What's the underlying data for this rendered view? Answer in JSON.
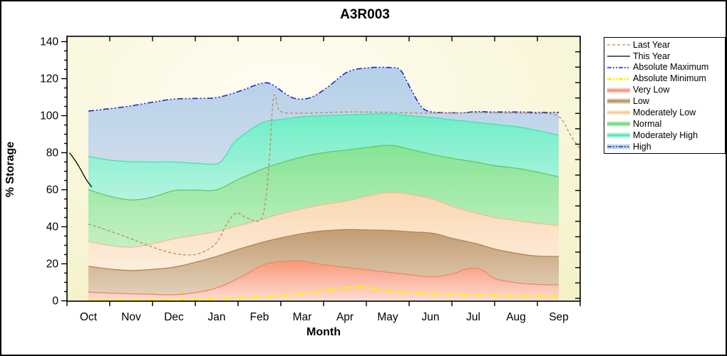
{
  "window": {
    "title": "A3R003"
  },
  "chart_data": {
    "type": "area",
    "title": "A3R003",
    "xlabel": "Month",
    "ylabel": "% Storage",
    "x_months": [
      "Oct",
      "Nov",
      "Dec",
      "Jan",
      "Feb",
      "Mar",
      "Apr",
      "May",
      "Jun",
      "Jul",
      "Aug",
      "Sep"
    ],
    "x_note": "x units are months from Oct start (0) to Sep end (12); band data runs mid-Oct (0.5) to mid-Sep (11.5)",
    "ylim": [
      0,
      140
    ],
    "y_major_step": 20,
    "y_minor_step": 5,
    "grid": "off",
    "legend_position": "right-outside",
    "plot_bg": {
      "center": "#fffdf2",
      "edge": "#f4f1c8"
    },
    "series": {
      "abs_max": [
        [
          0.5,
          102.5
        ],
        [
          1.0,
          103.8
        ],
        [
          1.5,
          105.3
        ],
        [
          2.0,
          107.3
        ],
        [
          2.5,
          109
        ],
        [
          3.0,
          109.3
        ],
        [
          3.5,
          109.8
        ],
        [
          4.0,
          113
        ],
        [
          4.55,
          117.5
        ],
        [
          4.8,
          116.8
        ],
        [
          5.1,
          112
        ],
        [
          5.35,
          109.2
        ],
        [
          5.7,
          109.8
        ],
        [
          6.1,
          115.5
        ],
        [
          6.55,
          123.5
        ],
        [
          7.0,
          125.8
        ],
        [
          7.55,
          126
        ],
        [
          7.8,
          124.5
        ],
        [
          8.05,
          114
        ],
        [
          8.3,
          104.5
        ],
        [
          8.55,
          102
        ],
        [
          9.0,
          101.6
        ],
        [
          9.3,
          101.6
        ],
        [
          9.55,
          102.2
        ],
        [
          10.0,
          102
        ],
        [
          10.55,
          102
        ],
        [
          11.0,
          101.8
        ],
        [
          11.5,
          101.8
        ]
      ],
      "mod_high_top": [
        [
          0.5,
          78
        ],
        [
          1.0,
          76
        ],
        [
          1.5,
          75.2
        ],
        [
          2.0,
          75
        ],
        [
          2.5,
          75
        ],
        [
          3.0,
          74.3
        ],
        [
          3.5,
          74
        ],
        [
          3.7,
          78
        ],
        [
          3.95,
          86.5
        ],
        [
          4.55,
          96
        ],
        [
          5.0,
          98
        ],
        [
          5.55,
          99.5
        ],
        [
          6.0,
          100
        ],
        [
          6.55,
          100.5
        ],
        [
          7.0,
          100.8
        ],
        [
          7.55,
          101
        ],
        [
          8.0,
          100
        ],
        [
          8.55,
          99
        ],
        [
          9.0,
          97.8
        ],
        [
          9.55,
          96.5
        ],
        [
          10.0,
          95.3
        ],
        [
          10.55,
          94
        ],
        [
          11.0,
          92
        ],
        [
          11.5,
          89.5
        ]
      ],
      "normal_top": [
        [
          0.5,
          60
        ],
        [
          1.0,
          56.5
        ],
        [
          1.5,
          54.5
        ],
        [
          2.0,
          56
        ],
        [
          2.5,
          59.5
        ],
        [
          3.0,
          59.8
        ],
        [
          3.5,
          60
        ],
        [
          4.0,
          65.5
        ],
        [
          4.55,
          71
        ],
        [
          5.0,
          74.5
        ],
        [
          5.55,
          78
        ],
        [
          6.0,
          80
        ],
        [
          6.55,
          81.5
        ],
        [
          7.0,
          82.8
        ],
        [
          7.55,
          84
        ],
        [
          8.0,
          82
        ],
        [
          8.55,
          79
        ],
        [
          9.0,
          77
        ],
        [
          9.55,
          75
        ],
        [
          10.0,
          73
        ],
        [
          10.55,
          71.5
        ],
        [
          11.0,
          69.5
        ],
        [
          11.5,
          67
        ]
      ],
      "mod_low_top": [
        [
          0.5,
          32
        ],
        [
          1.0,
          30
        ],
        [
          1.5,
          29
        ],
        [
          2.0,
          30.8
        ],
        [
          2.5,
          33.5
        ],
        [
          3.0,
          35.5
        ],
        [
          3.5,
          37.5
        ],
        [
          4.0,
          40.5
        ],
        [
          4.55,
          44
        ],
        [
          5.0,
          47
        ],
        [
          5.55,
          50
        ],
        [
          6.0,
          52
        ],
        [
          6.55,
          54
        ],
        [
          7.0,
          56.5
        ],
        [
          7.55,
          58.5
        ],
        [
          8.0,
          57.5
        ],
        [
          8.55,
          55
        ],
        [
          9.0,
          51
        ],
        [
          9.55,
          47.5
        ],
        [
          10.0,
          45
        ],
        [
          10.55,
          43.2
        ],
        [
          11.0,
          41.8
        ],
        [
          11.5,
          40.8
        ]
      ],
      "low_top": [
        [
          0.5,
          18.6
        ],
        [
          1.0,
          17.2
        ],
        [
          1.5,
          16.4
        ],
        [
          2.0,
          17
        ],
        [
          2.5,
          18.2
        ],
        [
          3.0,
          20.8
        ],
        [
          3.5,
          24
        ],
        [
          4.0,
          27.8
        ],
        [
          4.55,
          31.5
        ],
        [
          5.0,
          34
        ],
        [
          5.55,
          36.5
        ],
        [
          6.0,
          37.8
        ],
        [
          6.55,
          38.5
        ],
        [
          7.0,
          38.3
        ],
        [
          7.55,
          38
        ],
        [
          8.0,
          37.3
        ],
        [
          8.55,
          36.5
        ],
        [
          9.0,
          33.8
        ],
        [
          9.55,
          31
        ],
        [
          10.0,
          28
        ],
        [
          10.55,
          25.5
        ],
        [
          11.0,
          24.2
        ],
        [
          11.5,
          24
        ]
      ],
      "very_low_top": [
        [
          0.5,
          4.7
        ],
        [
          1.0,
          4.2
        ],
        [
          1.5,
          3.8
        ],
        [
          2.0,
          3.5
        ],
        [
          2.5,
          3.3
        ],
        [
          3.0,
          4.5
        ],
        [
          3.5,
          7
        ],
        [
          4.0,
          12
        ],
        [
          4.55,
          19
        ],
        [
          4.9,
          21
        ],
        [
          5.2,
          21.5
        ],
        [
          5.55,
          21.3
        ],
        [
          6.0,
          19.5
        ],
        [
          6.55,
          18
        ],
        [
          7.0,
          16.8
        ],
        [
          7.55,
          15.3
        ],
        [
          8.0,
          14.2
        ],
        [
          8.55,
          13
        ],
        [
          9.0,
          14.5
        ],
        [
          9.4,
          17.5
        ],
        [
          9.7,
          16.8
        ],
        [
          10.0,
          12
        ],
        [
          10.55,
          9.7
        ],
        [
          11.0,
          8.9
        ],
        [
          11.5,
          8.6
        ]
      ],
      "abs_min": [
        [
          0.5,
          0.4
        ],
        [
          1.0,
          0.4
        ],
        [
          1.5,
          0.4
        ],
        [
          2.0,
          0.5
        ],
        [
          2.5,
          0.6
        ],
        [
          3.0,
          0.8
        ],
        [
          3.5,
          1.2
        ],
        [
          4.0,
          1.6
        ],
        [
          4.55,
          2.0
        ],
        [
          5.0,
          2.8
        ],
        [
          5.55,
          3.9
        ],
        [
          6.0,
          5.3
        ],
        [
          6.55,
          7.0
        ],
        [
          6.8,
          7.4
        ],
        [
          7.0,
          7.2
        ],
        [
          7.55,
          5.2
        ],
        [
          8.0,
          4.4
        ],
        [
          8.55,
          3.8
        ],
        [
          9.0,
          3.4
        ],
        [
          9.55,
          3.1
        ],
        [
          10.0,
          2.9
        ],
        [
          10.55,
          2.7
        ],
        [
          11.0,
          2.5
        ],
        [
          11.5,
          2.4
        ]
      ],
      "last_year": [
        [
          0.5,
          41.5
        ],
        [
          0.9,
          38.5
        ],
        [
          1.5,
          33.5
        ],
        [
          2.0,
          29
        ],
        [
          2.5,
          25.6
        ],
        [
          2.9,
          24.8
        ],
        [
          3.2,
          26.5
        ],
        [
          3.5,
          31.5
        ],
        [
          3.75,
          42
        ],
        [
          3.95,
          47.3
        ],
        [
          4.15,
          45.5
        ],
        [
          4.45,
          43
        ],
        [
          4.6,
          48
        ],
        [
          4.72,
          72
        ],
        [
          4.83,
          110
        ],
        [
          4.95,
          103.5
        ],
        [
          5.1,
          101.6
        ],
        [
          5.5,
          101.4
        ],
        [
          6.0,
          101.7
        ],
        [
          6.5,
          102
        ],
        [
          7.0,
          102
        ],
        [
          7.55,
          101.8
        ],
        [
          8.0,
          101.5
        ],
        [
          8.55,
          101.4
        ],
        [
          9.0,
          101.4
        ],
        [
          9.55,
          101.7
        ],
        [
          10.0,
          101.5
        ],
        [
          10.55,
          101.4
        ],
        [
          11.0,
          101.2
        ],
        [
          11.3,
          101
        ],
        [
          11.55,
          98.5
        ],
        [
          11.8,
          88.5
        ],
        [
          12.0,
          82
        ]
      ],
      "this_year": [
        [
          0.06,
          80
        ],
        [
          0.2,
          75.5
        ],
        [
          0.33,
          70.5
        ],
        [
          0.45,
          65.5
        ],
        [
          0.58,
          61.5
        ]
      ],
      "baseline": [
        [
          0.5,
          0
        ],
        [
          11.5,
          0
        ]
      ]
    },
    "bands": [
      {
        "name": "Very Low",
        "top": "very_low_top",
        "bottom": "baseline",
        "color_top": "#f8997a",
        "color_bottom": "#fcdcd4",
        "line": "#ef8767"
      },
      {
        "name": "Low",
        "top": "low_top",
        "bottom": "very_low_top",
        "color_top": "#c39c72",
        "color_bottom": "#e2d0b8",
        "line": "#b08457"
      },
      {
        "name": "Moderately Low",
        "top": "mod_low_top",
        "bottom": "low_top",
        "color_top": "#fad7b2",
        "color_bottom": "#fdeedd",
        "line": "#efbf90"
      },
      {
        "name": "Normal",
        "top": "normal_top",
        "bottom": "mod_low_top",
        "color_top": "#85e494",
        "color_bottom": "#c4f0c4",
        "line": "#5ec968"
      },
      {
        "name": "Moderately High",
        "top": "mod_high_top",
        "bottom": "normal_top",
        "color_top": "#6feec6",
        "color_bottom": "#b5f3e0",
        "line": "#3fe2ae"
      },
      {
        "name": "High",
        "top": "abs_max",
        "bottom": "mod_high_top",
        "color_top": "#b4cfe9",
        "color_bottom": "#cddcea",
        "line": null
      }
    ],
    "lines": [
      {
        "name": "Absolute Maximum",
        "series": "abs_max",
        "color": "#2424d2",
        "width": 1.6,
        "dash": "8 3 2 3 2 3"
      },
      {
        "name": "Absolute Minimum",
        "series": "abs_min",
        "color": "#fff200",
        "width": 3,
        "dash": "8 3 2 3 2 3"
      },
      {
        "name": "Last Year",
        "series": "last_year",
        "color": "#c08a55",
        "width": 1.3,
        "dash": "4 3"
      },
      {
        "name": "This Year",
        "series": "this_year",
        "color": "#000000",
        "width": 1.3,
        "dash": ""
      }
    ],
    "legend_items": [
      {
        "label": "Last Year",
        "sample": "line",
        "color": "#c08a55",
        "width": 1.3,
        "dash": "4 3"
      },
      {
        "label": "This Year",
        "sample": "line",
        "color": "#000000",
        "width": 1.3,
        "dash": ""
      },
      {
        "label": "Absolute Maximum",
        "sample": "line",
        "color": "#2424d2",
        "width": 1.6,
        "dash": "6 2 2 2 2 2"
      },
      {
        "label": "Absolute Minimum",
        "sample": "line",
        "color": "#fff200",
        "width": 3,
        "dash": "6 2 2 2 2 2"
      },
      {
        "label": "Very Low",
        "sample": "band",
        "color_top": "#f8997a",
        "color_bottom": "#fcdcd4",
        "line": "#ef8767",
        "dash": ""
      },
      {
        "label": "Low",
        "sample": "band",
        "color_top": "#c39c72",
        "color_bottom": "#e2d0b8",
        "line": "#b08457",
        "dash": ""
      },
      {
        "label": "Moderately Low",
        "sample": "band",
        "color_top": "#fad7b2",
        "color_bottom": "#fdeedd",
        "line": "#efbf90",
        "dash": ""
      },
      {
        "label": "Normal",
        "sample": "band",
        "color_top": "#85e494",
        "color_bottom": "#c4f0c4",
        "line": "#5ec968",
        "dash": ""
      },
      {
        "label": "Moderately High",
        "sample": "band",
        "color_top": "#6feec6",
        "color_bottom": "#b5f3e0",
        "line": "#3fe2ae",
        "dash": ""
      },
      {
        "label": "High",
        "sample": "band",
        "color_top": "#b4cfe9",
        "color_bottom": "#cddcea",
        "line": "#2424d2",
        "dash": "6 2 2 2 2 2"
      }
    ]
  }
}
